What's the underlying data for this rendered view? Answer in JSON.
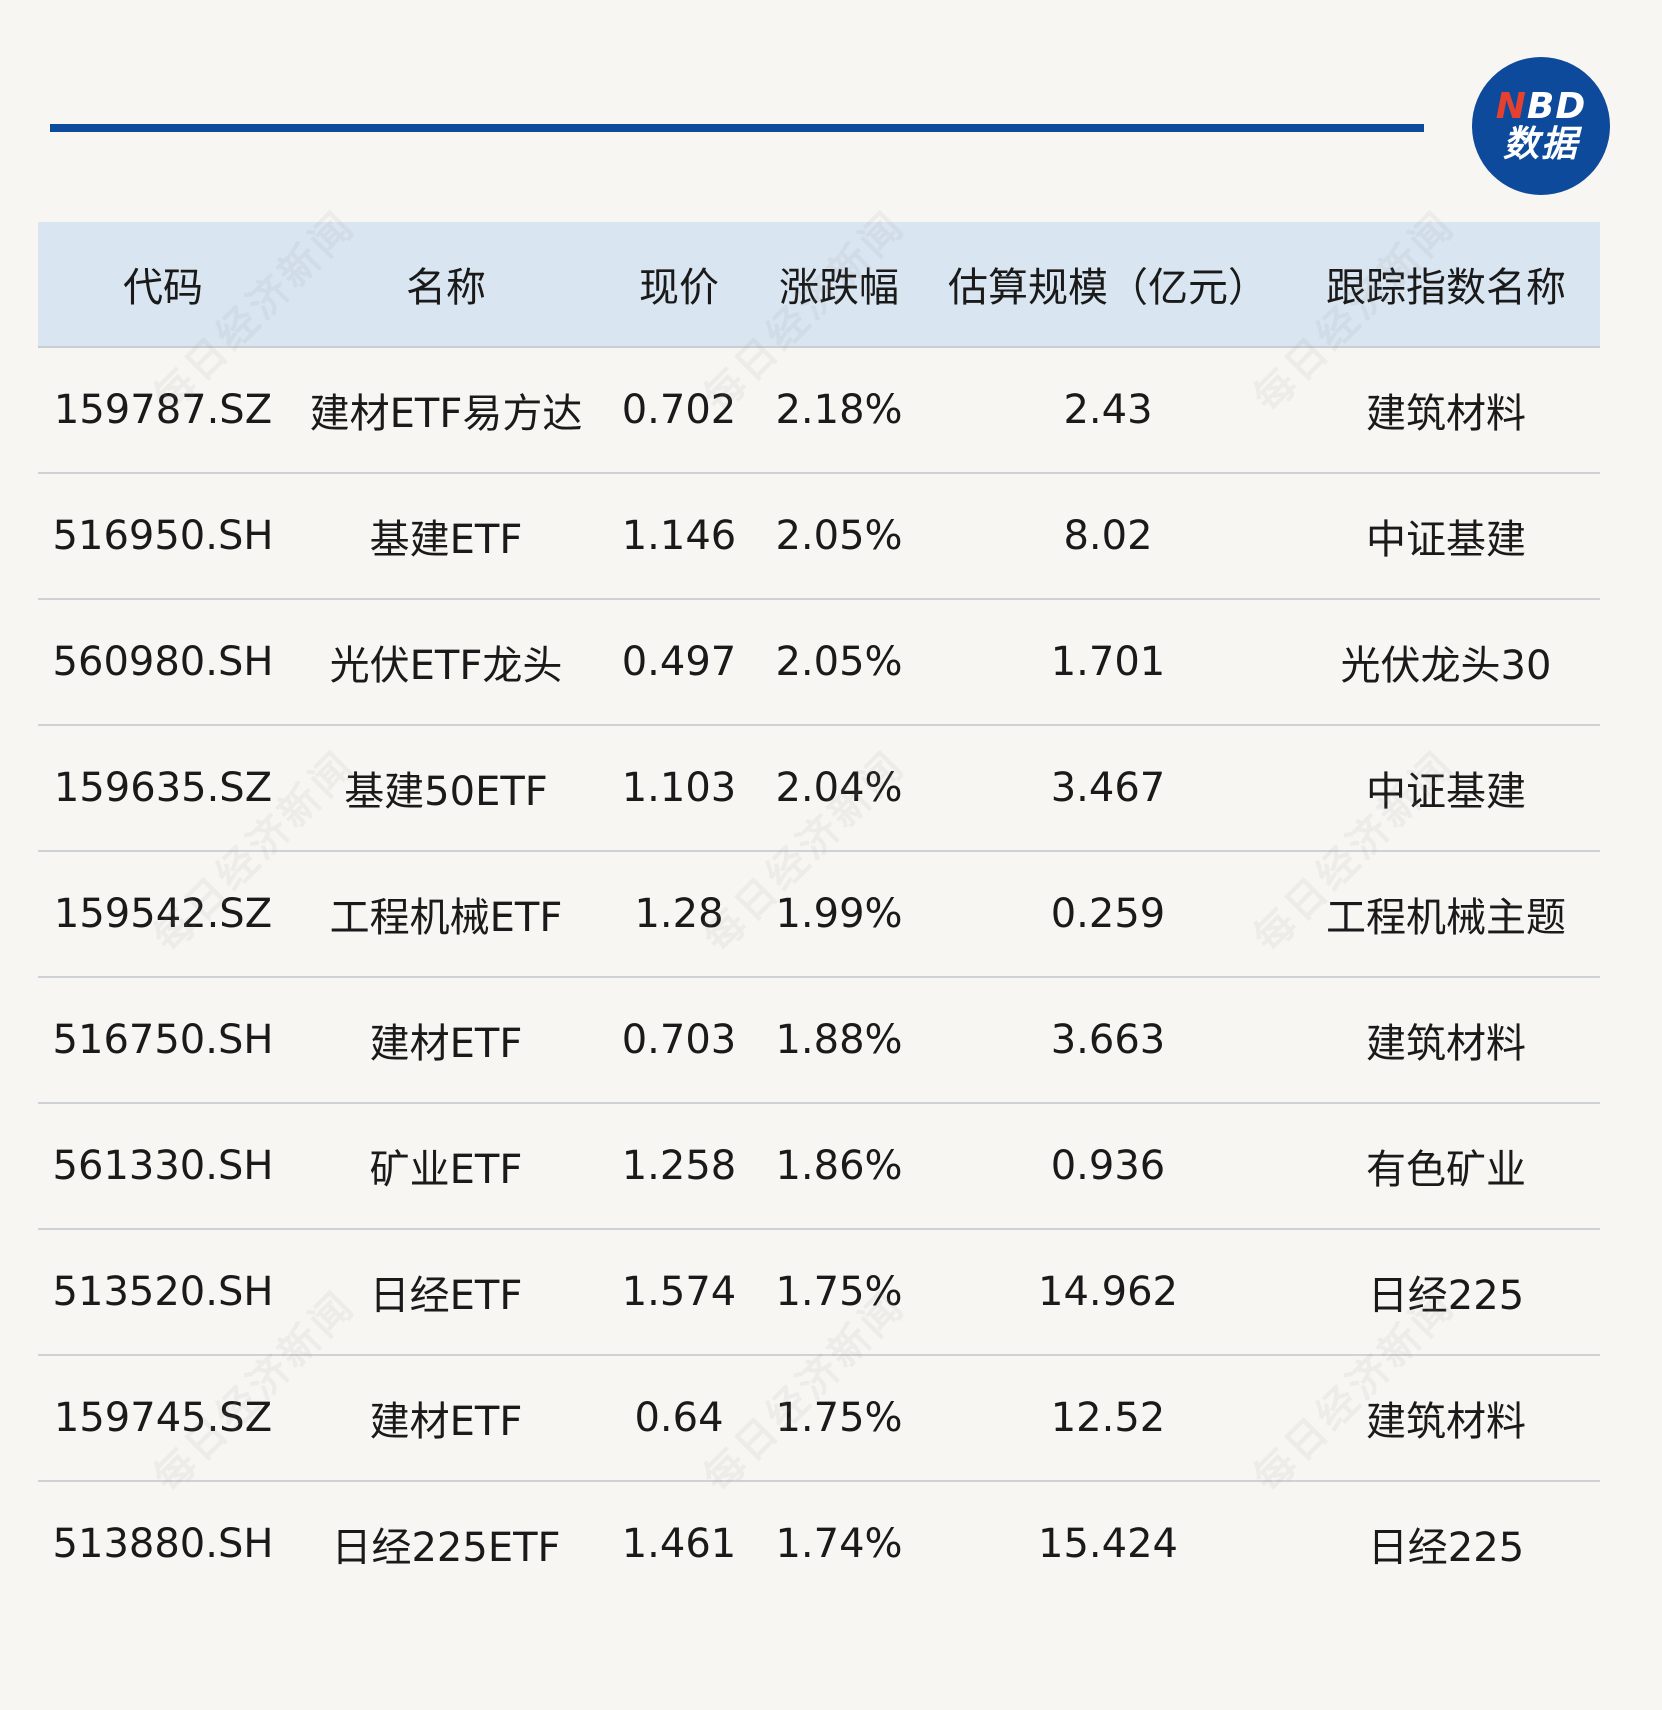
{
  "logo": {
    "top_n": "N",
    "top_rest": "BD",
    "bottom": "数据"
  },
  "watermark": "每日经济新闻",
  "table": {
    "headers": [
      "代码",
      "名称",
      "现价",
      "涨跌幅",
      "估算规模（亿元）",
      "跟踪指数名称"
    ],
    "rows": [
      [
        "159787.SZ",
        "建材ETF易方达",
        "0.702",
        "2.18%",
        "2.43",
        "建筑材料"
      ],
      [
        "516950.SH",
        "基建ETF",
        "1.146",
        "2.05%",
        "8.02",
        "中证基建"
      ],
      [
        "560980.SH",
        "光伏ETF龙头",
        "0.497",
        "2.05%",
        "1.701",
        "光伏龙头30"
      ],
      [
        "159635.SZ",
        "基建50ETF",
        "1.103",
        "2.04%",
        "3.467",
        "中证基建"
      ],
      [
        "159542.SZ",
        "工程机械ETF",
        "1.28",
        "1.99%",
        "0.259",
        "工程机械主题"
      ],
      [
        "516750.SH",
        "建材ETF",
        "0.703",
        "1.88%",
        "3.663",
        "建筑材料"
      ],
      [
        "561330.SH",
        "矿业ETF",
        "1.258",
        "1.86%",
        "0.936",
        "有色矿业"
      ],
      [
        "513520.SH",
        "日经ETF",
        "1.574",
        "1.75%",
        "14.962",
        "日经225"
      ],
      [
        "159745.SZ",
        "建材ETF",
        "0.64",
        "1.75%",
        "12.52",
        "建筑材料"
      ],
      [
        "513880.SH",
        "日经225ETF",
        "1.461",
        "1.74%",
        "15.424",
        "日经225"
      ]
    ]
  },
  "colors": {
    "accent_blue": "#0e4a9c",
    "header_bg": "#d9e5f0",
    "page_bg": "#f8f6f2",
    "logo_n_red": "#e8402f"
  }
}
